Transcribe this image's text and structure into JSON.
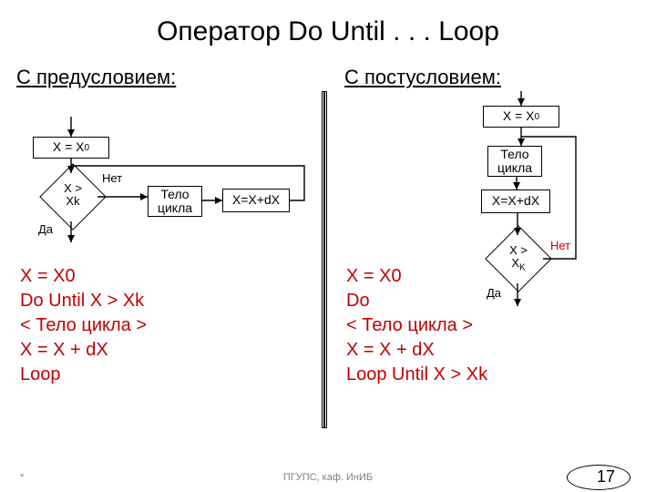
{
  "title": "Оператор   Do Until . . . Loop",
  "left": {
    "header": "С предусловием:",
    "init_html": "X = X<span class=\"sub\">0</span>",
    "cond_html": "X ><br>Xk",
    "no_label": "Нет",
    "yes_label": "Да",
    "body_label": "Тело цикла",
    "step_label": "X=X+dX",
    "code": "X = X0\nDo Until X > Xk\n< Тело цикла >\nX = X + dX\nLoop"
  },
  "right": {
    "header": "С постусловием:",
    "init_html": "X = X<span class=\"sub\">0</span>",
    "body_label": "Тело цикла",
    "step_label": "X=X+dX",
    "cond_html": "X ><br>X<span class=\"sub\">K</span>",
    "no_label": "Нет",
    "yes_label": "Да",
    "code": "X = X0\nDo\n< Тело цикла >\nX = X + dX\nLoop Until X > Xk"
  },
  "footer": {
    "left": "*",
    "center": "ПГУПС, каф. ИнИБ",
    "page": "17"
  },
  "colors": {
    "code": "#c00000",
    "text": "#000000",
    "footer": "#7f7f7f"
  }
}
